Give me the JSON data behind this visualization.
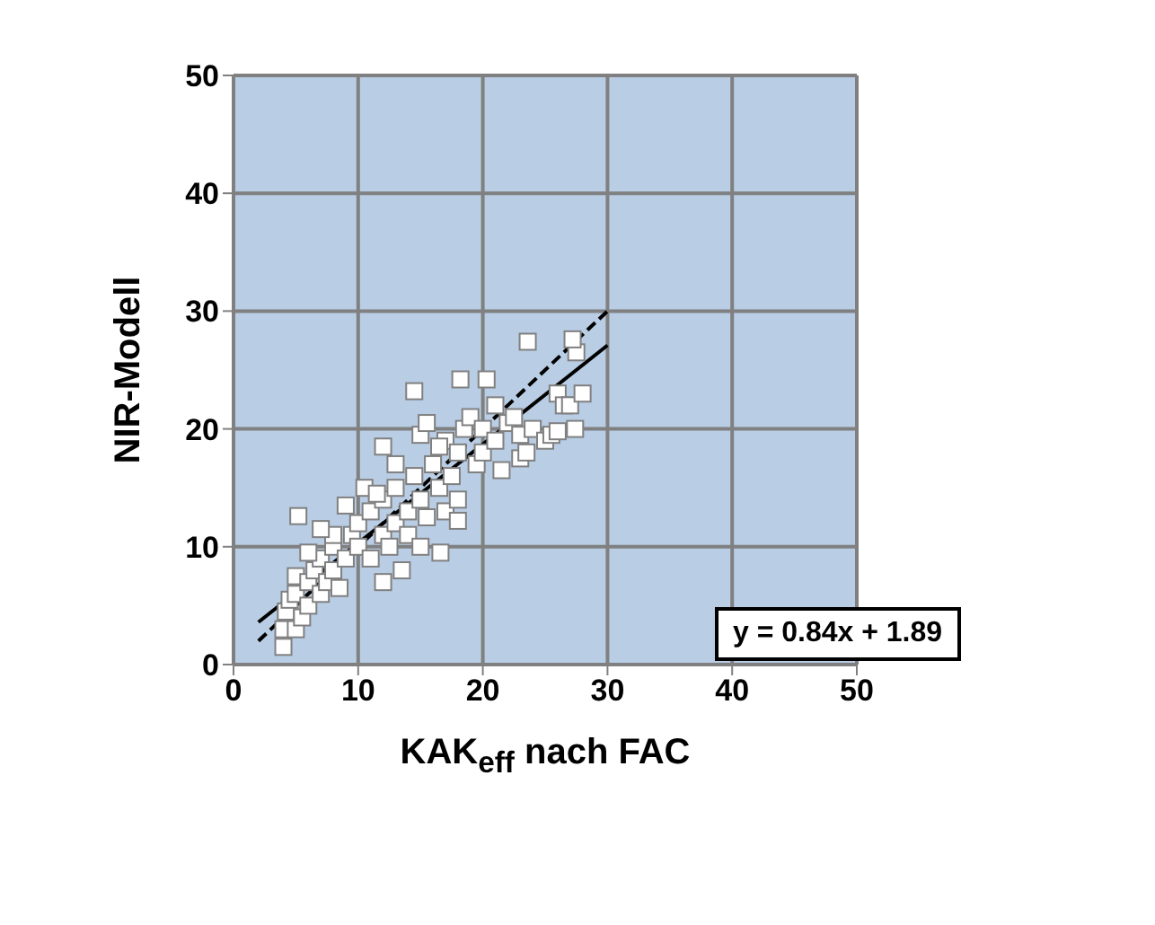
{
  "chart_data": {
    "type": "scatter",
    "xlabel": "KAK$_{eff}$ nach FAC",
    "ylabel": "NIR-Modell",
    "xlim": [
      0,
      50
    ],
    "xticks": [
      0,
      10,
      20,
      30,
      40,
      50
    ],
    "ylim": [
      0,
      50
    ],
    "yticks": [
      0,
      10,
      20,
      30,
      40,
      50
    ],
    "grid": true,
    "annotations": [
      "y = 0.84x + 1.89"
    ],
    "series": [
      {
        "marker": "square",
        "color": "#ffffff",
        "x": [
          4,
          4,
          4.2,
          4.5,
          5,
          5,
          5.5,
          5,
          6,
          6,
          6.5,
          7,
          7,
          7.5,
          8,
          8,
          8.5,
          9,
          9.5,
          5.2,
          10,
          10,
          10.5,
          11,
          11,
          12,
          12,
          12.5,
          13,
          13,
          13.5,
          14,
          14,
          14.5,
          15,
          15,
          15.5,
          16.6,
          16,
          16.5,
          17,
          17,
          17.5,
          18,
          18,
          18.5,
          14.5,
          18.2,
          20.3,
          19,
          19.5,
          20,
          20,
          21,
          21,
          21.5,
          22,
          22.5,
          23,
          23,
          23.5,
          23.6,
          24,
          25,
          25.5,
          26,
          26,
          26.5,
          27.4,
          27,
          27.5,
          27.2,
          28,
          18,
          12,
          9,
          8,
          7,
          6,
          11.5,
          13,
          15,
          15.5,
          16.5,
          12
        ],
        "values": [
          1.5,
          3,
          4.5,
          5.5,
          3,
          6,
          4,
          7.5,
          5,
          7,
          8,
          6,
          9,
          7,
          8,
          10,
          6.5,
          9,
          11,
          12.6,
          10,
          12,
          15,
          13,
          9,
          11,
          14,
          10,
          12,
          15,
          8,
          13,
          11,
          16,
          14,
          10,
          12.5,
          9.5,
          17,
          15,
          13,
          19,
          16,
          18,
          14,
          20,
          23.2,
          24.2,
          24.2,
          21,
          17,
          18,
          20,
          19,
          22,
          16.5,
          20.5,
          21,
          17.5,
          19.5,
          18,
          27.4,
          20,
          19,
          19.5,
          19.8,
          23,
          22,
          20,
          22,
          26.5,
          27.6,
          23,
          12.2,
          7,
          13.5,
          11,
          11.5,
          9.5,
          14.5,
          17,
          19.5,
          20.5,
          18.5,
          18.5
        ]
      },
      {
        "type": "line",
        "color": "#000000",
        "line_style": "solid",
        "x": [
          2,
          30
        ],
        "values": [
          3.6,
          27.1
        ]
      },
      {
        "type": "line",
        "color": "#000000",
        "line_style": "dashed",
        "x": [
          2,
          30
        ],
        "values": [
          2,
          30
        ]
      }
    ]
  }
}
